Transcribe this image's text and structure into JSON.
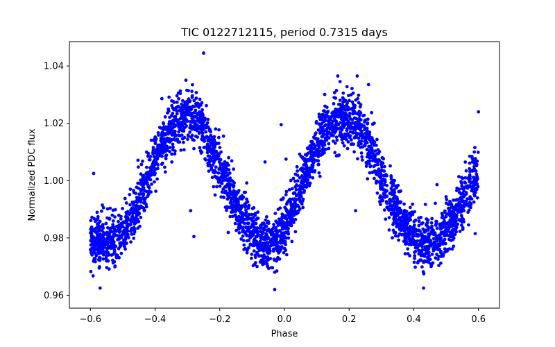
{
  "chart_data": {
    "type": "scatter",
    "title": "TIC 0122712115, period 0.7315 days",
    "xlabel": "Phase",
    "ylabel": "Normalized PDC flux",
    "xlim": [
      -0.665,
      0.665
    ],
    "ylim": [
      0.9555,
      1.0485
    ],
    "xticks": [
      -0.6,
      -0.4,
      -0.2,
      0.0,
      0.2,
      0.4,
      0.6
    ],
    "xtick_labels": [
      "−0.6",
      "−0.4",
      "−0.2",
      "0.0",
      "0.2",
      "0.4",
      "0.6"
    ],
    "yticks": [
      0.96,
      0.98,
      1.0,
      1.02,
      1.04
    ],
    "ytick_labels": [
      "0.96",
      "0.98",
      "1.00",
      "1.02",
      "1.04"
    ],
    "grid": false,
    "marker_color": "#0000ff",
    "phase_range": [
      -0.6,
      0.6
    ],
    "curve_model": {
      "description": "double-humped light curve",
      "maxima_phase": [
        -0.3,
        0.2
      ],
      "maxima_flux": [
        1.023,
        1.022
      ],
      "minima_phase": [
        -0.55,
        -0.05,
        0.45
      ],
      "minima_flux": [
        0.978,
        0.977,
        0.978
      ],
      "scatter_sigma": 0.0045
    },
    "series": [
      {
        "values": [
          [
            -0.6,
            0.9785
          ],
          [
            -0.575,
            0.9782
          ],
          [
            -0.55,
            0.978
          ],
          [
            -0.525,
            0.9785
          ],
          [
            -0.5,
            0.981
          ],
          [
            -0.475,
            0.9865
          ],
          [
            -0.45,
            0.993
          ],
          [
            -0.425,
            1.0
          ],
          [
            -0.4,
            1.007
          ],
          [
            -0.375,
            1.0135
          ],
          [
            -0.35,
            1.019
          ],
          [
            -0.325,
            1.022
          ],
          [
            -0.3,
            1.023
          ],
          [
            -0.275,
            1.021
          ],
          [
            -0.25,
            1.017
          ],
          [
            -0.225,
            1.011
          ],
          [
            -0.2,
            1.0045
          ],
          [
            -0.175,
            0.9975
          ],
          [
            -0.15,
            0.991
          ],
          [
            -0.125,
            0.9855
          ],
          [
            -0.1,
            0.9815
          ],
          [
            -0.075,
            0.9785
          ],
          [
            -0.05,
            0.977
          ],
          [
            -0.025,
            0.979
          ],
          [
            0.0,
            0.9835
          ],
          [
            0.025,
            0.99
          ],
          [
            0.05,
            0.9975
          ],
          [
            0.075,
            1.005
          ],
          [
            0.1,
            1.012
          ],
          [
            0.125,
            1.0175
          ],
          [
            0.15,
            1.0205
          ],
          [
            0.175,
            1.0218
          ],
          [
            0.2,
            1.022
          ],
          [
            0.225,
            1.02
          ],
          [
            0.25,
            1.0155
          ],
          [
            0.275,
            1.009
          ],
          [
            0.3,
            1.0015
          ],
          [
            0.325,
            0.9945
          ],
          [
            0.35,
            0.988
          ],
          [
            0.375,
            0.9835
          ],
          [
            0.4,
            0.9805
          ],
          [
            0.425,
            0.9785
          ],
          [
            0.45,
            0.978
          ],
          [
            0.475,
            0.9795
          ],
          [
            0.5,
            0.9825
          ],
          [
            0.525,
            0.987
          ],
          [
            0.55,
            0.9925
          ],
          [
            0.575,
            0.9985
          ],
          [
            0.6,
            1.004
          ]
        ]
      }
    ],
    "outliers": [
      [
        -0.25,
        1.0445
      ],
      [
        0.165,
        1.0365
      ],
      [
        0.225,
        1.0365
      ],
      [
        0.26,
        1.0335
      ],
      [
        -0.01,
        1.0195
      ],
      [
        -0.06,
        1.0065
      ],
      [
        0.005,
        1.0075
      ],
      [
        0.6,
        1.024
      ],
      [
        0.22,
        0.9895
      ],
      [
        -0.28,
        0.9805
      ],
      [
        -0.29,
        0.9895
      ],
      [
        -0.59,
        1.0025
      ],
      [
        0.59,
        0.9815
      ],
      [
        0.43,
        0.9625
      ],
      [
        -0.57,
        0.9625
      ],
      [
        -0.03,
        0.962
      ],
      [
        0.11,
        1.0015
      ],
      [
        -0.22,
        1.003
      ]
    ]
  }
}
